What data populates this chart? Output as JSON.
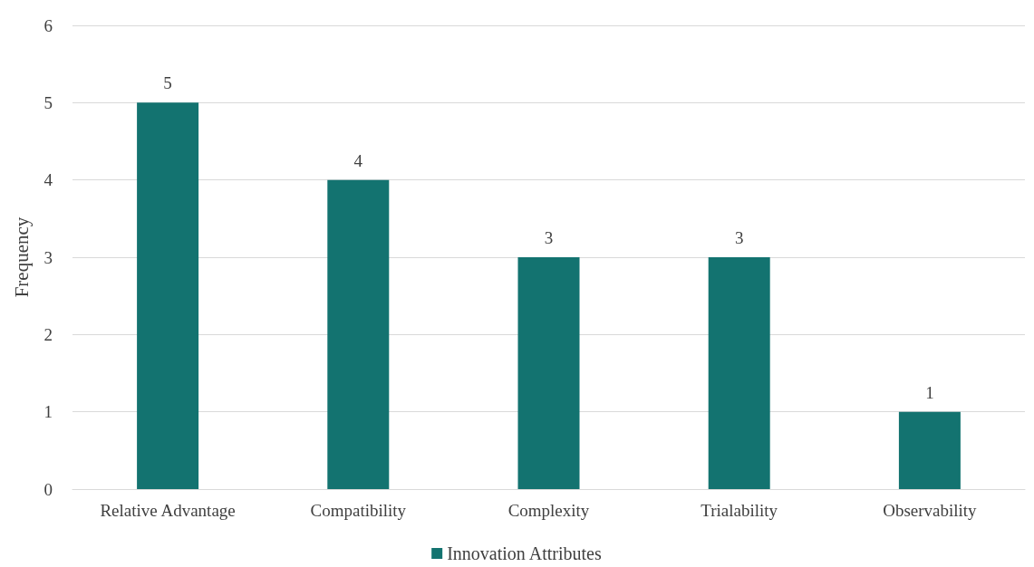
{
  "chart_data": {
    "type": "bar",
    "categories": [
      "Relative Advantage",
      "Compatibility",
      "Complexity",
      "Trialability",
      "Observability"
    ],
    "series": [
      {
        "name": "Innovation Attributes",
        "color": "#137370",
        "values": [
          5,
          4,
          3,
          3,
          1
        ]
      }
    ],
    "ylabel": "Frequency",
    "ylim": [
      0,
      6
    ],
    "yticks": [
      0,
      1,
      2,
      3,
      4,
      5,
      6
    ],
    "grid": "y",
    "legend": "bottom",
    "data_labels": true
  }
}
